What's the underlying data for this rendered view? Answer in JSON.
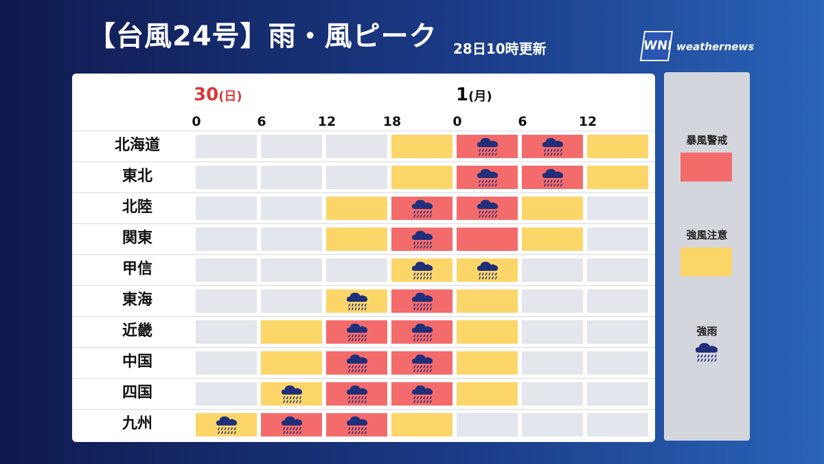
{
  "title": "【台風24号】雨・風ピーク",
  "updated": "28日10時更新",
  "logo": {
    "mark": "WNI",
    "text": "weathernews"
  },
  "days": [
    {
      "num": "30",
      "weekday": "(日)",
      "color": "#d63a3a"
    },
    {
      "num": "1",
      "weekday": "(月)",
      "color": "#111111"
    }
  ],
  "hours": [
    "0",
    "6",
    "12",
    "18",
    "0",
    "6",
    "12"
  ],
  "colors": {
    "red": "#f46b6b",
    "yellow": "#fdd66a",
    "gray": "#e3e6ec",
    "rain_icon": "#1f2f7a"
  },
  "rows": [
    {
      "region": "北海道",
      "cells": [
        {
          "level": "none",
          "rain": false
        },
        {
          "level": "none",
          "rain": false
        },
        {
          "level": "none",
          "rain": false
        },
        {
          "level": "yellow",
          "rain": false
        },
        {
          "level": "red",
          "rain": true
        },
        {
          "level": "red",
          "rain": true
        },
        {
          "level": "yellow",
          "rain": false
        }
      ]
    },
    {
      "region": "東北",
      "cells": [
        {
          "level": "none",
          "rain": false
        },
        {
          "level": "none",
          "rain": false
        },
        {
          "level": "none",
          "rain": false
        },
        {
          "level": "yellow",
          "rain": false
        },
        {
          "level": "red",
          "rain": true
        },
        {
          "level": "red",
          "rain": true
        },
        {
          "level": "yellow",
          "rain": false
        }
      ]
    },
    {
      "region": "北陸",
      "cells": [
        {
          "level": "none",
          "rain": false
        },
        {
          "level": "none",
          "rain": false
        },
        {
          "level": "yellow",
          "rain": false
        },
        {
          "level": "red",
          "rain": true
        },
        {
          "level": "red",
          "rain": true
        },
        {
          "level": "yellow",
          "rain": false
        },
        {
          "level": "none",
          "rain": false
        }
      ]
    },
    {
      "region": "関東",
      "cells": [
        {
          "level": "none",
          "rain": false
        },
        {
          "level": "none",
          "rain": false
        },
        {
          "level": "yellow",
          "rain": false
        },
        {
          "level": "red",
          "rain": true
        },
        {
          "level": "red",
          "rain": false
        },
        {
          "level": "yellow",
          "rain": false
        },
        {
          "level": "none",
          "rain": false
        }
      ]
    },
    {
      "region": "甲信",
      "cells": [
        {
          "level": "none",
          "rain": false
        },
        {
          "level": "none",
          "rain": false
        },
        {
          "level": "none",
          "rain": false
        },
        {
          "level": "yellow",
          "rain": true
        },
        {
          "level": "yellow",
          "rain": true
        },
        {
          "level": "none",
          "rain": false
        },
        {
          "level": "none",
          "rain": false
        }
      ]
    },
    {
      "region": "東海",
      "cells": [
        {
          "level": "none",
          "rain": false
        },
        {
          "level": "none",
          "rain": false
        },
        {
          "level": "yellow",
          "rain": true
        },
        {
          "level": "red",
          "rain": true
        },
        {
          "level": "yellow",
          "rain": false
        },
        {
          "level": "none",
          "rain": false
        },
        {
          "level": "none",
          "rain": false
        }
      ]
    },
    {
      "region": "近畿",
      "cells": [
        {
          "level": "none",
          "rain": false
        },
        {
          "level": "yellow",
          "rain": false
        },
        {
          "level": "red",
          "rain": true
        },
        {
          "level": "red",
          "rain": true
        },
        {
          "level": "yellow",
          "rain": false
        },
        {
          "level": "none",
          "rain": false
        },
        {
          "level": "none",
          "rain": false
        }
      ]
    },
    {
      "region": "中国",
      "cells": [
        {
          "level": "none",
          "rain": false
        },
        {
          "level": "yellow",
          "rain": false
        },
        {
          "level": "red",
          "rain": true
        },
        {
          "level": "red",
          "rain": true
        },
        {
          "level": "yellow",
          "rain": false
        },
        {
          "level": "none",
          "rain": false
        },
        {
          "level": "none",
          "rain": false
        }
      ]
    },
    {
      "region": "四国",
      "cells": [
        {
          "level": "none",
          "rain": false
        },
        {
          "level": "yellow",
          "rain": true
        },
        {
          "level": "red",
          "rain": true
        },
        {
          "level": "red",
          "rain": true
        },
        {
          "level": "yellow",
          "rain": false
        },
        {
          "level": "none",
          "rain": false
        },
        {
          "level": "none",
          "rain": false
        }
      ]
    },
    {
      "region": "九州",
      "cells": [
        {
          "level": "yellow",
          "rain": true
        },
        {
          "level": "red",
          "rain": true
        },
        {
          "level": "red",
          "rain": true
        },
        {
          "level": "yellow",
          "rain": false
        },
        {
          "level": "none",
          "rain": false
        },
        {
          "level": "none",
          "rain": false
        },
        {
          "level": "none",
          "rain": false
        }
      ]
    }
  ],
  "legend": {
    "storm_warning": "暴風警戒",
    "strong_wind": "強風注意",
    "heavy_rain": "強雨"
  }
}
